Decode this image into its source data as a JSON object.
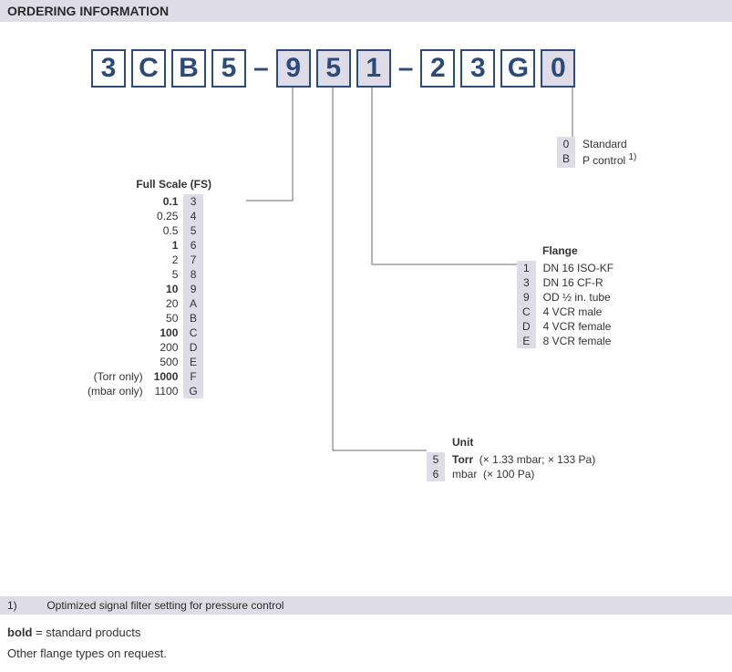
{
  "header": "ORDERING INFORMATION",
  "code": {
    "c0": "3",
    "c1": "C",
    "c2": "B",
    "c3": "5",
    "c4": "9",
    "c5": "5",
    "c6": "1",
    "c7": "2",
    "c8": "3",
    "c9": "G",
    "c10": "0",
    "dash": "–"
  },
  "fullScale": {
    "title": "Full Scale (FS)",
    "rows": [
      {
        "prefix": "",
        "val": "0.1",
        "code": "3",
        "bold": true
      },
      {
        "prefix": "",
        "val": "0.25",
        "code": "4",
        "bold": false
      },
      {
        "prefix": "",
        "val": "0.5",
        "code": "5",
        "bold": false
      },
      {
        "prefix": "",
        "val": "1",
        "code": "6",
        "bold": true
      },
      {
        "prefix": "",
        "val": "2",
        "code": "7",
        "bold": false
      },
      {
        "prefix": "",
        "val": "5",
        "code": "8",
        "bold": false
      },
      {
        "prefix": "",
        "val": "10",
        "code": "9",
        "bold": true
      },
      {
        "prefix": "",
        "val": "20",
        "code": "A",
        "bold": false
      },
      {
        "prefix": "",
        "val": "50",
        "code": "B",
        "bold": false
      },
      {
        "prefix": "",
        "val": "100",
        "code": "C",
        "bold": true
      },
      {
        "prefix": "",
        "val": "200",
        "code": "D",
        "bold": false
      },
      {
        "prefix": "",
        "val": "500",
        "code": "E",
        "bold": false
      },
      {
        "prefix": "(Torr only)",
        "val": "1000",
        "code": "F",
        "bold": true
      },
      {
        "prefix": "(mbar only)",
        "val": "1100",
        "code": "G",
        "bold": false
      }
    ]
  },
  "unit": {
    "title": "Unit",
    "rows": [
      {
        "code": "5",
        "name": "Torr",
        "nameBold": true,
        "extra": "(× 1.33 mbar; × 133 Pa)"
      },
      {
        "code": "6",
        "name": "mbar",
        "nameBold": false,
        "extra": "(× 100 Pa)"
      }
    ]
  },
  "flange": {
    "title": "Flange",
    "rows": [
      {
        "code": "1",
        "desc": "DN 16 ISO-KF"
      },
      {
        "code": "3",
        "desc": "DN 16 CF-R"
      },
      {
        "code": "9",
        "desc": "OD ½ in. tube"
      },
      {
        "code": "C",
        "desc": "4 VCR male"
      },
      {
        "code": "D",
        "desc": "4 VCR female"
      },
      {
        "code": "E",
        "desc": "8 VCR female"
      }
    ]
  },
  "variant": {
    "rows": [
      {
        "code": "0",
        "desc": "Standard"
      },
      {
        "code": "B",
        "descHtml": "P control <sup>1)</sup>",
        "desc": "P control 1)"
      }
    ]
  },
  "footnote": {
    "num": "1)",
    "text": "Optimized signal filter setting for pressure control"
  },
  "notes": {
    "line1a": "bold",
    "line1b": " = standard products",
    "line2": "Other flange types on request."
  },
  "style": {
    "boxBorder": "#2c4b7a",
    "shadeBg": "#dedce7",
    "lineColor": "#6b6b6b"
  }
}
